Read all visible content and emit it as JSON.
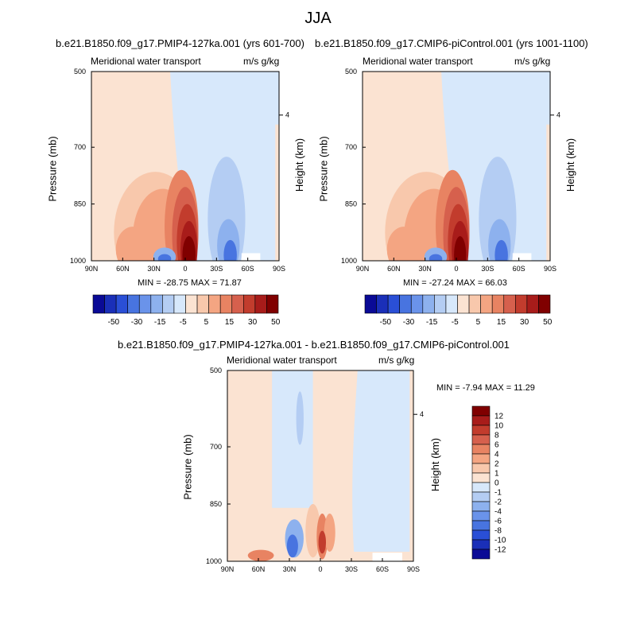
{
  "figure_title": "JJA",
  "colors": {
    "positive_scale": [
      "#fbe3d2",
      "#f8c8ac",
      "#f4a582",
      "#e88362",
      "#d6604d",
      "#c23c2d",
      "#a81c1a",
      "#800000"
    ],
    "negative_scale": [
      "#d7e8fb",
      "#b4cdf3",
      "#8db1ee",
      "#6a93ea",
      "#4874e0",
      "#2a4fd6",
      "#1a2fb8",
      "#0a0a96"
    ]
  },
  "panels": {
    "top_left": {
      "title": "b.e21.B1850.f09_g17.PMIP4-127ka.001 (yrs 601-700)",
      "left_string": "Meridional water transport",
      "right_string": "m/s g/kg",
      "min_max": "MIN = -28.75  MAX =  71.87",
      "ylabel": "Pressure (mb)",
      "ylabel_right": "Height (km)"
    },
    "top_right": {
      "title": "b.e21.B1850.f09_g17.CMIP6-piControl.001 (yrs 1001-1100)",
      "left_string": "Meridional water transport",
      "right_string": "m/s g/kg",
      "min_max": "MIN = -27.24  MAX =  66.03",
      "ylabel": "Pressure (mb)",
      "ylabel_right": "Height (km)"
    },
    "bottom": {
      "title": "b.e21.B1850.f09_g17.PMIP4-127ka.001 - b.e21.B1850.f09_g17.CMIP6-piControl.001",
      "left_string": "Meridional water transport",
      "right_string": "m/s g/kg",
      "min_max": "MIN =  -7.94  MAX =  11.29",
      "ylabel": "Pressure (mb)",
      "ylabel_right": "Height (km)"
    }
  },
  "chart_data": [
    {
      "type": "heatmap",
      "title": "b.e21.B1850.f09_g17.PMIP4-127ka.001 (yrs 601-700)",
      "ylabel": "Pressure (mb)",
      "y2label": "Height (km)",
      "x_tick_labels": [
        "90N",
        "60N",
        "30N",
        "0",
        "30S",
        "60S",
        "90S"
      ],
      "y_tick_labels": [
        "500",
        "700",
        "850",
        "1000"
      ],
      "y2_tick_labels": [
        "4"
      ],
      "ylim": [
        1000,
        500
      ],
      "min": -28.75,
      "max": 71.87,
      "colorbar_levels": [
        "-50",
        "-30",
        "-15",
        "-5",
        "5",
        "15",
        "30",
        "50"
      ]
    },
    {
      "type": "heatmap",
      "title": "b.e21.B1850.f09_g17.CMIP6-piControl.001 (yrs 1001-1100)",
      "ylabel": "Pressure (mb)",
      "y2label": "Height (km)",
      "x_tick_labels": [
        "90N",
        "60N",
        "30N",
        "0",
        "30S",
        "60S",
        "90S"
      ],
      "y_tick_labels": [
        "500",
        "700",
        "850",
        "1000"
      ],
      "y2_tick_labels": [
        "4"
      ],
      "ylim": [
        1000,
        500
      ],
      "min": -27.24,
      "max": 66.03,
      "colorbar_levels": [
        "-50",
        "-30",
        "-15",
        "-5",
        "5",
        "15",
        "30",
        "50"
      ]
    },
    {
      "type": "heatmap",
      "title": "b.e21.B1850.f09_g17.PMIP4-127ka.001 - b.e21.B1850.f09_g17.CMIP6-piControl.001",
      "ylabel": "Pressure (mb)",
      "y2label": "Height (km)",
      "x_tick_labels": [
        "90N",
        "60N",
        "30N",
        "0",
        "30S",
        "60S",
        "90S"
      ],
      "y_tick_labels": [
        "500",
        "700",
        "850",
        "1000"
      ],
      "y2_tick_labels": [
        "4"
      ],
      "ylim": [
        1000,
        500
      ],
      "min": -7.94,
      "max": 11.29,
      "colorbar_levels": [
        "12",
        "10",
        "8",
        "6",
        "4",
        "2",
        "1",
        "0",
        "-1",
        "-2",
        "-4",
        "-6",
        "-8",
        "-10",
        "-12"
      ]
    }
  ]
}
